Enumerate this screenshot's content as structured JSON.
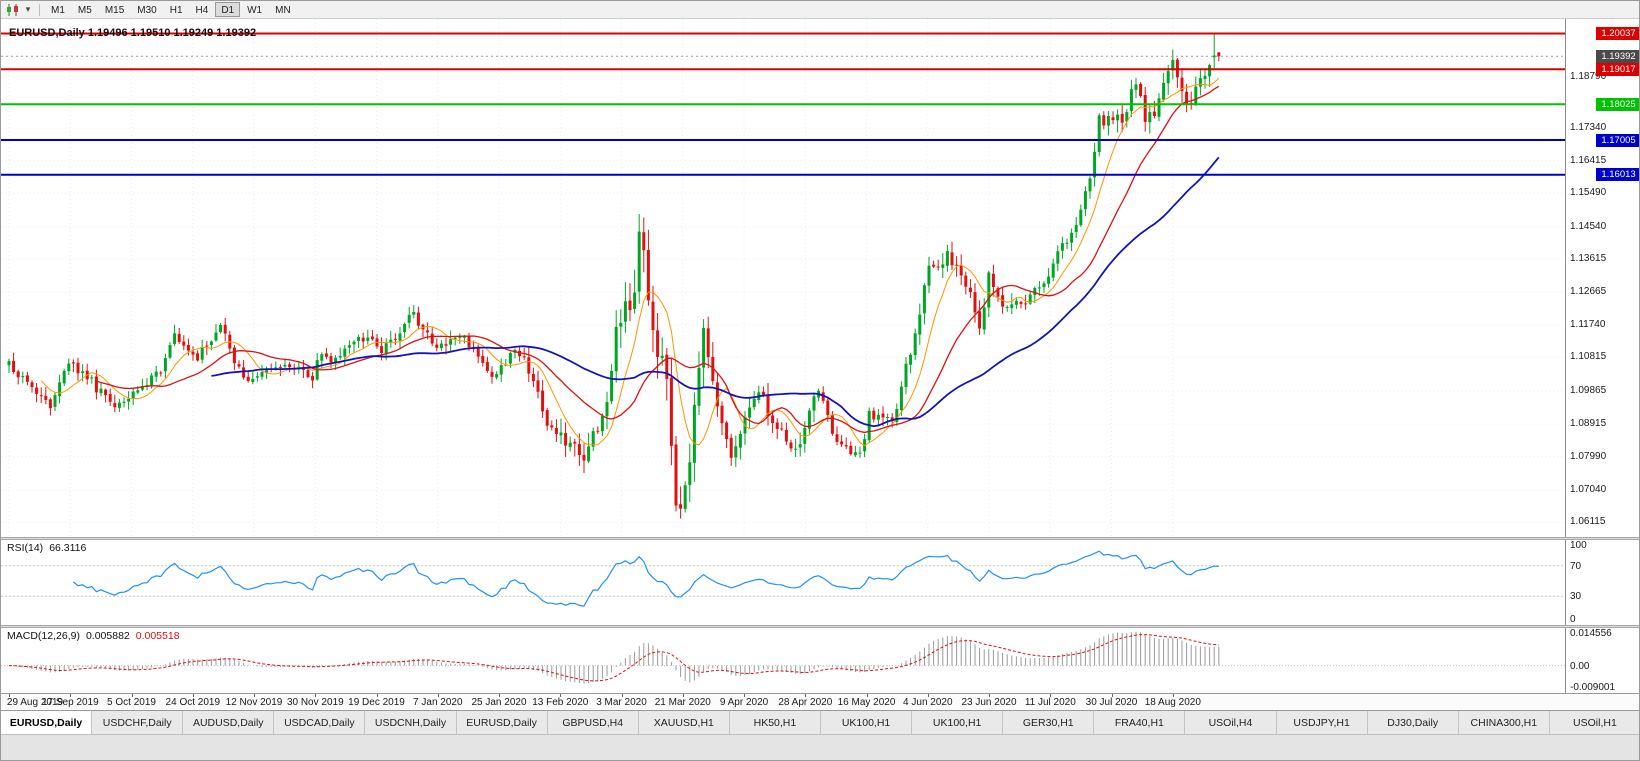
{
  "toolbar": {
    "timeframes": [
      "M1",
      "M5",
      "M15",
      "M30",
      "H1",
      "H4",
      "D1",
      "W1",
      "MN"
    ],
    "active_timeframe": "D1",
    "dropdown_glyph": "▾"
  },
  "chart": {
    "symbol": "EURUSD",
    "period": "Daily",
    "title": "EURUSD,Daily 1.19496 1.19510 1.19249 1.19392"
  },
  "price_axis": {
    "plain_labels": [
      "1.18790",
      "1.17340",
      "1.16415",
      "1.15490",
      "1.14540",
      "1.13615",
      "1.12665",
      "1.11740",
      "1.10815",
      "1.09865",
      "1.08915",
      "1.07990",
      "1.07040",
      "1.06115"
    ],
    "current_price": {
      "value": "1.19392",
      "bg": "#4a4a4a"
    },
    "line_tags": [
      {
        "value": "1.20037",
        "price": 1.20037,
        "color": "#dd0000"
      },
      {
        "value": "1.19017",
        "price": 1.19017,
        "color": "#dd0000"
      },
      {
        "value": "1.18025",
        "price": 1.18025,
        "color": "#00c200"
      },
      {
        "value": "1.17005",
        "price": 1.17005,
        "color": "#0000cc"
      },
      {
        "value": "1.16013",
        "price": 1.16013,
        "color": "#0000cc"
      }
    ]
  },
  "chart_data": {
    "type": "candlestick",
    "symbol": "EURUSD",
    "timeframe": "Daily",
    "bars": 264,
    "seed": 20200902,
    "price_range": [
      1.057,
      1.2045
    ],
    "close_anchors": [
      [
        0,
        1.106
      ],
      [
        6,
        1.0985
      ],
      [
        9,
        1.093
      ],
      [
        13,
        1.107
      ],
      [
        18,
        1.101
      ],
      [
        23,
        1.093
      ],
      [
        28,
        1.098
      ],
      [
        33,
        1.104
      ],
      [
        36,
        1.115
      ],
      [
        41,
        1.108
      ],
      [
        45,
        1.1152
      ],
      [
        46,
        1.1165
      ],
      [
        51,
        1.102
      ],
      [
        56,
        1.105
      ],
      [
        61,
        1.106
      ],
      [
        66,
        1.1018
      ],
      [
        67,
        1.1078
      ],
      [
        72,
        1.108
      ],
      [
        76,
        1.113
      ],
      [
        78,
        1.1145
      ],
      [
        81,
        1.109
      ],
      [
        87,
        1.12
      ],
      [
        88,
        1.1212
      ],
      [
        89,
        1.1172
      ],
      [
        93,
        1.1105
      ],
      [
        99,
        1.1135
      ],
      [
        105,
        1.1025
      ],
      [
        110,
        1.1094
      ],
      [
        112,
        1.106
      ],
      [
        117,
        1.091
      ],
      [
        121,
        1.084
      ],
      [
        125,
        1.079
      ],
      [
        128,
        1.088
      ],
      [
        131,
        1.1026
      ],
      [
        132,
        1.1133
      ],
      [
        136,
        1.1284
      ],
      [
        137,
        1.1446
      ],
      [
        139,
        1.1271
      ],
      [
        141,
        1.1105
      ],
      [
        143,
        1.0995
      ],
      [
        145,
        1.0692
      ],
      [
        146,
        1.0637
      ],
      [
        148,
        1.0787
      ],
      [
        150,
        1.103
      ],
      [
        151,
        1.1141
      ],
      [
        153,
        1.1031
      ],
      [
        154,
        1.0962
      ],
      [
        157,
        1.0791
      ],
      [
        160,
        1.093
      ],
      [
        163,
        1.098
      ],
      [
        168,
        1.0858
      ],
      [
        171,
        1.082
      ],
      [
        175,
        1.0955
      ],
      [
        176,
        1.098
      ],
      [
        180,
        1.0834
      ],
      [
        185,
        1.0805
      ],
      [
        187,
        1.0915
      ],
      [
        192,
        1.0898
      ],
      [
        196,
        1.1101
      ],
      [
        197,
        1.1134
      ],
      [
        200,
        1.1337
      ],
      [
        204,
        1.1373
      ],
      [
        207,
        1.1323
      ],
      [
        211,
        1.1177
      ],
      [
        213,
        1.1307
      ],
      [
        216,
        1.1218
      ],
      [
        218,
        1.1234
      ],
      [
        220,
        1.1239
      ],
      [
        225,
        1.1284
      ],
      [
        229,
        1.141
      ],
      [
        232,
        1.1445
      ],
      [
        235,
        1.1598
      ],
      [
        237,
        1.175
      ],
      [
        241,
        1.1778
      ],
      [
        242,
        1.1762
      ],
      [
        245,
        1.1876
      ],
      [
        247,
        1.1736
      ],
      [
        250,
        1.1813
      ],
      [
        253,
        1.1934
      ],
      [
        256,
        1.1796
      ],
      [
        258,
        1.1833
      ],
      [
        261,
        1.1903
      ],
      [
        262,
        1.1936
      ],
      [
        263,
        1.1939
      ]
    ],
    "volatility_zones": [
      [
        112,
        131,
        1.6
      ],
      [
        132,
        153,
        2.6
      ],
      [
        154,
        175,
        1.4
      ],
      [
        196,
        218,
        1.3
      ],
      [
        235,
        261,
        1.4
      ]
    ],
    "prev_bar": {
      "open": 1.1936,
      "high": 1.2003,
      "low": 1.1901,
      "close": 1.1941
    },
    "last_bar": {
      "open": 1.19496,
      "high": 1.1951,
      "low": 1.19249,
      "close": 1.19392
    },
    "horizontal_lines": [
      {
        "price": 1.20037,
        "color": "#dd0000"
      },
      {
        "price": 1.19017,
        "color": "#dd0000"
      },
      {
        "price": 1.18025,
        "color": "#00c200"
      },
      {
        "price": 1.17005,
        "color": "#0000cc"
      },
      {
        "price": 1.16013,
        "color": "#0000cc"
      }
    ],
    "moving_averages": [
      {
        "period": 8,
        "color": "#ff9500",
        "width": 1
      },
      {
        "period": 20,
        "color": "#dd1111",
        "width": 1.3
      },
      {
        "period": 45,
        "color": "#1414b8",
        "width": 1.8
      }
    ]
  },
  "rsi": {
    "label": "RSI(14)",
    "value": "66.3116",
    "period": 14,
    "levels": [
      "100",
      "70",
      "30",
      "0"
    ],
    "overbought": 70,
    "oversold": 30
  },
  "macd": {
    "label": "MACD(12,26,9)",
    "main_value": "0.005882",
    "signal_value": "0.005518",
    "fast": 12,
    "slow": 26,
    "signal": 9,
    "axis": [
      "0.014556",
      "0.00",
      "-0.009001"
    ]
  },
  "date_axis": [
    "29 Aug 2019",
    "17 Sep 2019",
    "5 Oct 2019",
    "24 Oct 2019",
    "12 Nov 2019",
    "30 Nov 2019",
    "19 Dec 2019",
    "7 Jan 2020",
    "25 Jan 2020",
    "13 Feb 2020",
    "3 Mar 2020",
    "21 Mar 2020",
    "9 Apr 2020",
    "28 Apr 2020",
    "16 May 2020",
    "4 Jun 2020",
    "23 Jun 2020",
    "11 Jul 2020",
    "30 Jul 2020",
    "18 Aug 2020"
  ],
  "tabs": [
    {
      "label": "EURUSD,Daily",
      "active": true
    },
    {
      "label": "USDCHF,Daily",
      "active": false
    },
    {
      "label": "AUDUSD,Daily",
      "active": false
    },
    {
      "label": "USDCAD,Daily",
      "active": false
    },
    {
      "label": "USDCNH,Daily",
      "active": false
    },
    {
      "label": "EURUSD,Daily",
      "active": false
    },
    {
      "label": "GBPUSD,H4",
      "active": false
    },
    {
      "label": "XAUUSD,H1",
      "active": false
    },
    {
      "label": "HK50,H1",
      "active": false
    },
    {
      "label": "UK100,H1",
      "active": false
    },
    {
      "label": "UK100,H1",
      "active": false
    },
    {
      "label": "GER30,H1",
      "active": false
    },
    {
      "label": "FRA40,H1",
      "active": false
    },
    {
      "label": "USOil,H4",
      "active": false
    },
    {
      "label": "USDJPY,H1",
      "active": false
    },
    {
      "label": "DJ30,Daily",
      "active": false
    },
    {
      "label": "CHINA300,H1",
      "active": false
    },
    {
      "label": "USOil,H1",
      "active": false
    }
  ],
  "colors": {
    "up": "#00a524",
    "down": "#e01010",
    "rsi_line": "#1e90ff",
    "macd_hist": "#9a9a9a",
    "macd_signal": "#e01010",
    "grid": "#ececec"
  }
}
